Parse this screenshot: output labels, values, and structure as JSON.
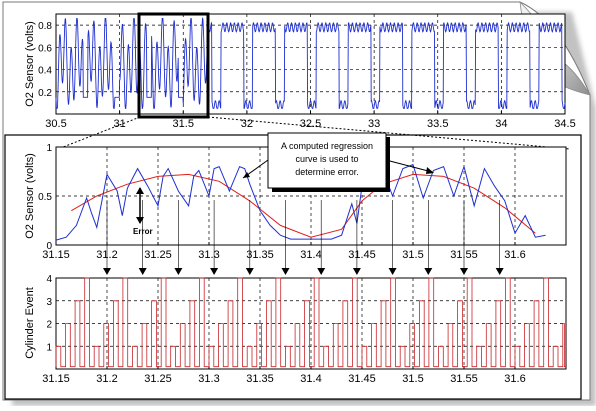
{
  "colors": {
    "trace": "#1f2fd0",
    "regression": "#e0201a",
    "cylinder": "#c8262a",
    "grid": "#000000",
    "frame": "#000000",
    "page_fold": "#d8d8d8"
  },
  "chart_data": [
    {
      "type": "line",
      "ylabel": "O2 Sensor (volts)",
      "xlim": [
        30.5,
        34.5
      ],
      "ylim": [
        0,
        0.9
      ],
      "x_ticks": [
        "30.5",
        "31",
        "31.5",
        "32",
        "32.5",
        "33",
        "33.5",
        "34",
        "34.5"
      ],
      "y_ticks": [
        "0.2",
        "0.4",
        "0.6",
        "0.8"
      ],
      "grid": true,
      "highlight_x": [
        31.14,
        31.66
      ],
      "series": [
        {
          "values_note": "",
          "period": 0.2,
          "x_start": 30.5,
          "x_end": 34.5
        }
      ]
    },
    {
      "type": "line",
      "ylabel": "O2 Sensor (volts)",
      "xlim": [
        31.15,
        31.65
      ],
      "ylim": [
        0,
        1
      ],
      "x_ticks": [
        "31.15",
        "31.2",
        "31.25",
        "31.3",
        "31.35",
        "31.4",
        "31.45",
        "31.5",
        "31.55",
        "31.6"
      ],
      "y_ticks": [
        "0",
        "0.5",
        "1"
      ],
      "grid": true,
      "annotation": "A computed regression curve is used to determine error.",
      "error_label": "Error",
      "series": [
        {
          "x": [
            31.15,
            31.16,
            31.17,
            31.18,
            31.185,
            31.19,
            31.2,
            31.21,
            31.215,
            31.22,
            31.23,
            31.24,
            31.25,
            31.255,
            31.26,
            31.27,
            31.28,
            31.285,
            31.29,
            31.3,
            31.305,
            31.31,
            31.32,
            31.33,
            31.335,
            31.34,
            31.35,
            31.36,
            31.37,
            31.38,
            31.39,
            31.4,
            31.41,
            31.42,
            31.43,
            31.44,
            31.445,
            31.45,
            31.46,
            31.47,
            31.48,
            31.49,
            31.5,
            31.51,
            31.52,
            31.53,
            31.54,
            31.55,
            31.56,
            31.57,
            31.58,
            31.59,
            31.6,
            31.61,
            31.62,
            31.63
          ],
          "y": [
            0.05,
            0.08,
            0.2,
            0.48,
            0.32,
            0.18,
            0.72,
            0.55,
            0.3,
            0.58,
            0.78,
            0.6,
            0.4,
            0.7,
            0.78,
            0.55,
            0.4,
            0.7,
            0.76,
            0.5,
            0.78,
            0.8,
            0.55,
            0.8,
            0.78,
            0.62,
            0.35,
            0.2,
            0.1,
            0.06,
            0.06,
            0.06,
            0.06,
            0.06,
            0.1,
            0.42,
            0.22,
            0.6,
            0.72,
            0.78,
            0.5,
            0.78,
            0.82,
            0.48,
            0.76,
            0.8,
            0.5,
            0.8,
            0.4,
            0.78,
            0.6,
            0.45,
            0.12,
            0.3,
            0.08,
            0.1
          ]
        },
        {
          "x": [
            31.165,
            31.19,
            31.22,
            31.25,
            31.28,
            31.31,
            31.34,
            31.37,
            31.4,
            31.43,
            31.45,
            31.47,
            31.5,
            31.53,
            31.56,
            31.59,
            31.62
          ],
          "y": [
            0.35,
            0.5,
            0.62,
            0.7,
            0.72,
            0.65,
            0.45,
            0.2,
            0.08,
            0.16,
            0.45,
            0.62,
            0.72,
            0.7,
            0.58,
            0.38,
            0.12
          ]
        }
      ]
    },
    {
      "type": "line",
      "ylabel": "Cylinder Event",
      "xlim": [
        31.15,
        31.65
      ],
      "ylim": [
        0,
        4
      ],
      "x_ticks": [
        "31.15",
        "31.2",
        "31.25",
        "31.3",
        "31.35",
        "31.4",
        "31.45",
        "31.5",
        "31.55",
        "31.6"
      ],
      "y_ticks": [
        "1",
        "2",
        "3",
        "4"
      ],
      "grid": true,
      "event_period": 0.0375,
      "event_levels": [
        1,
        2,
        3,
        4
      ]
    }
  ]
}
